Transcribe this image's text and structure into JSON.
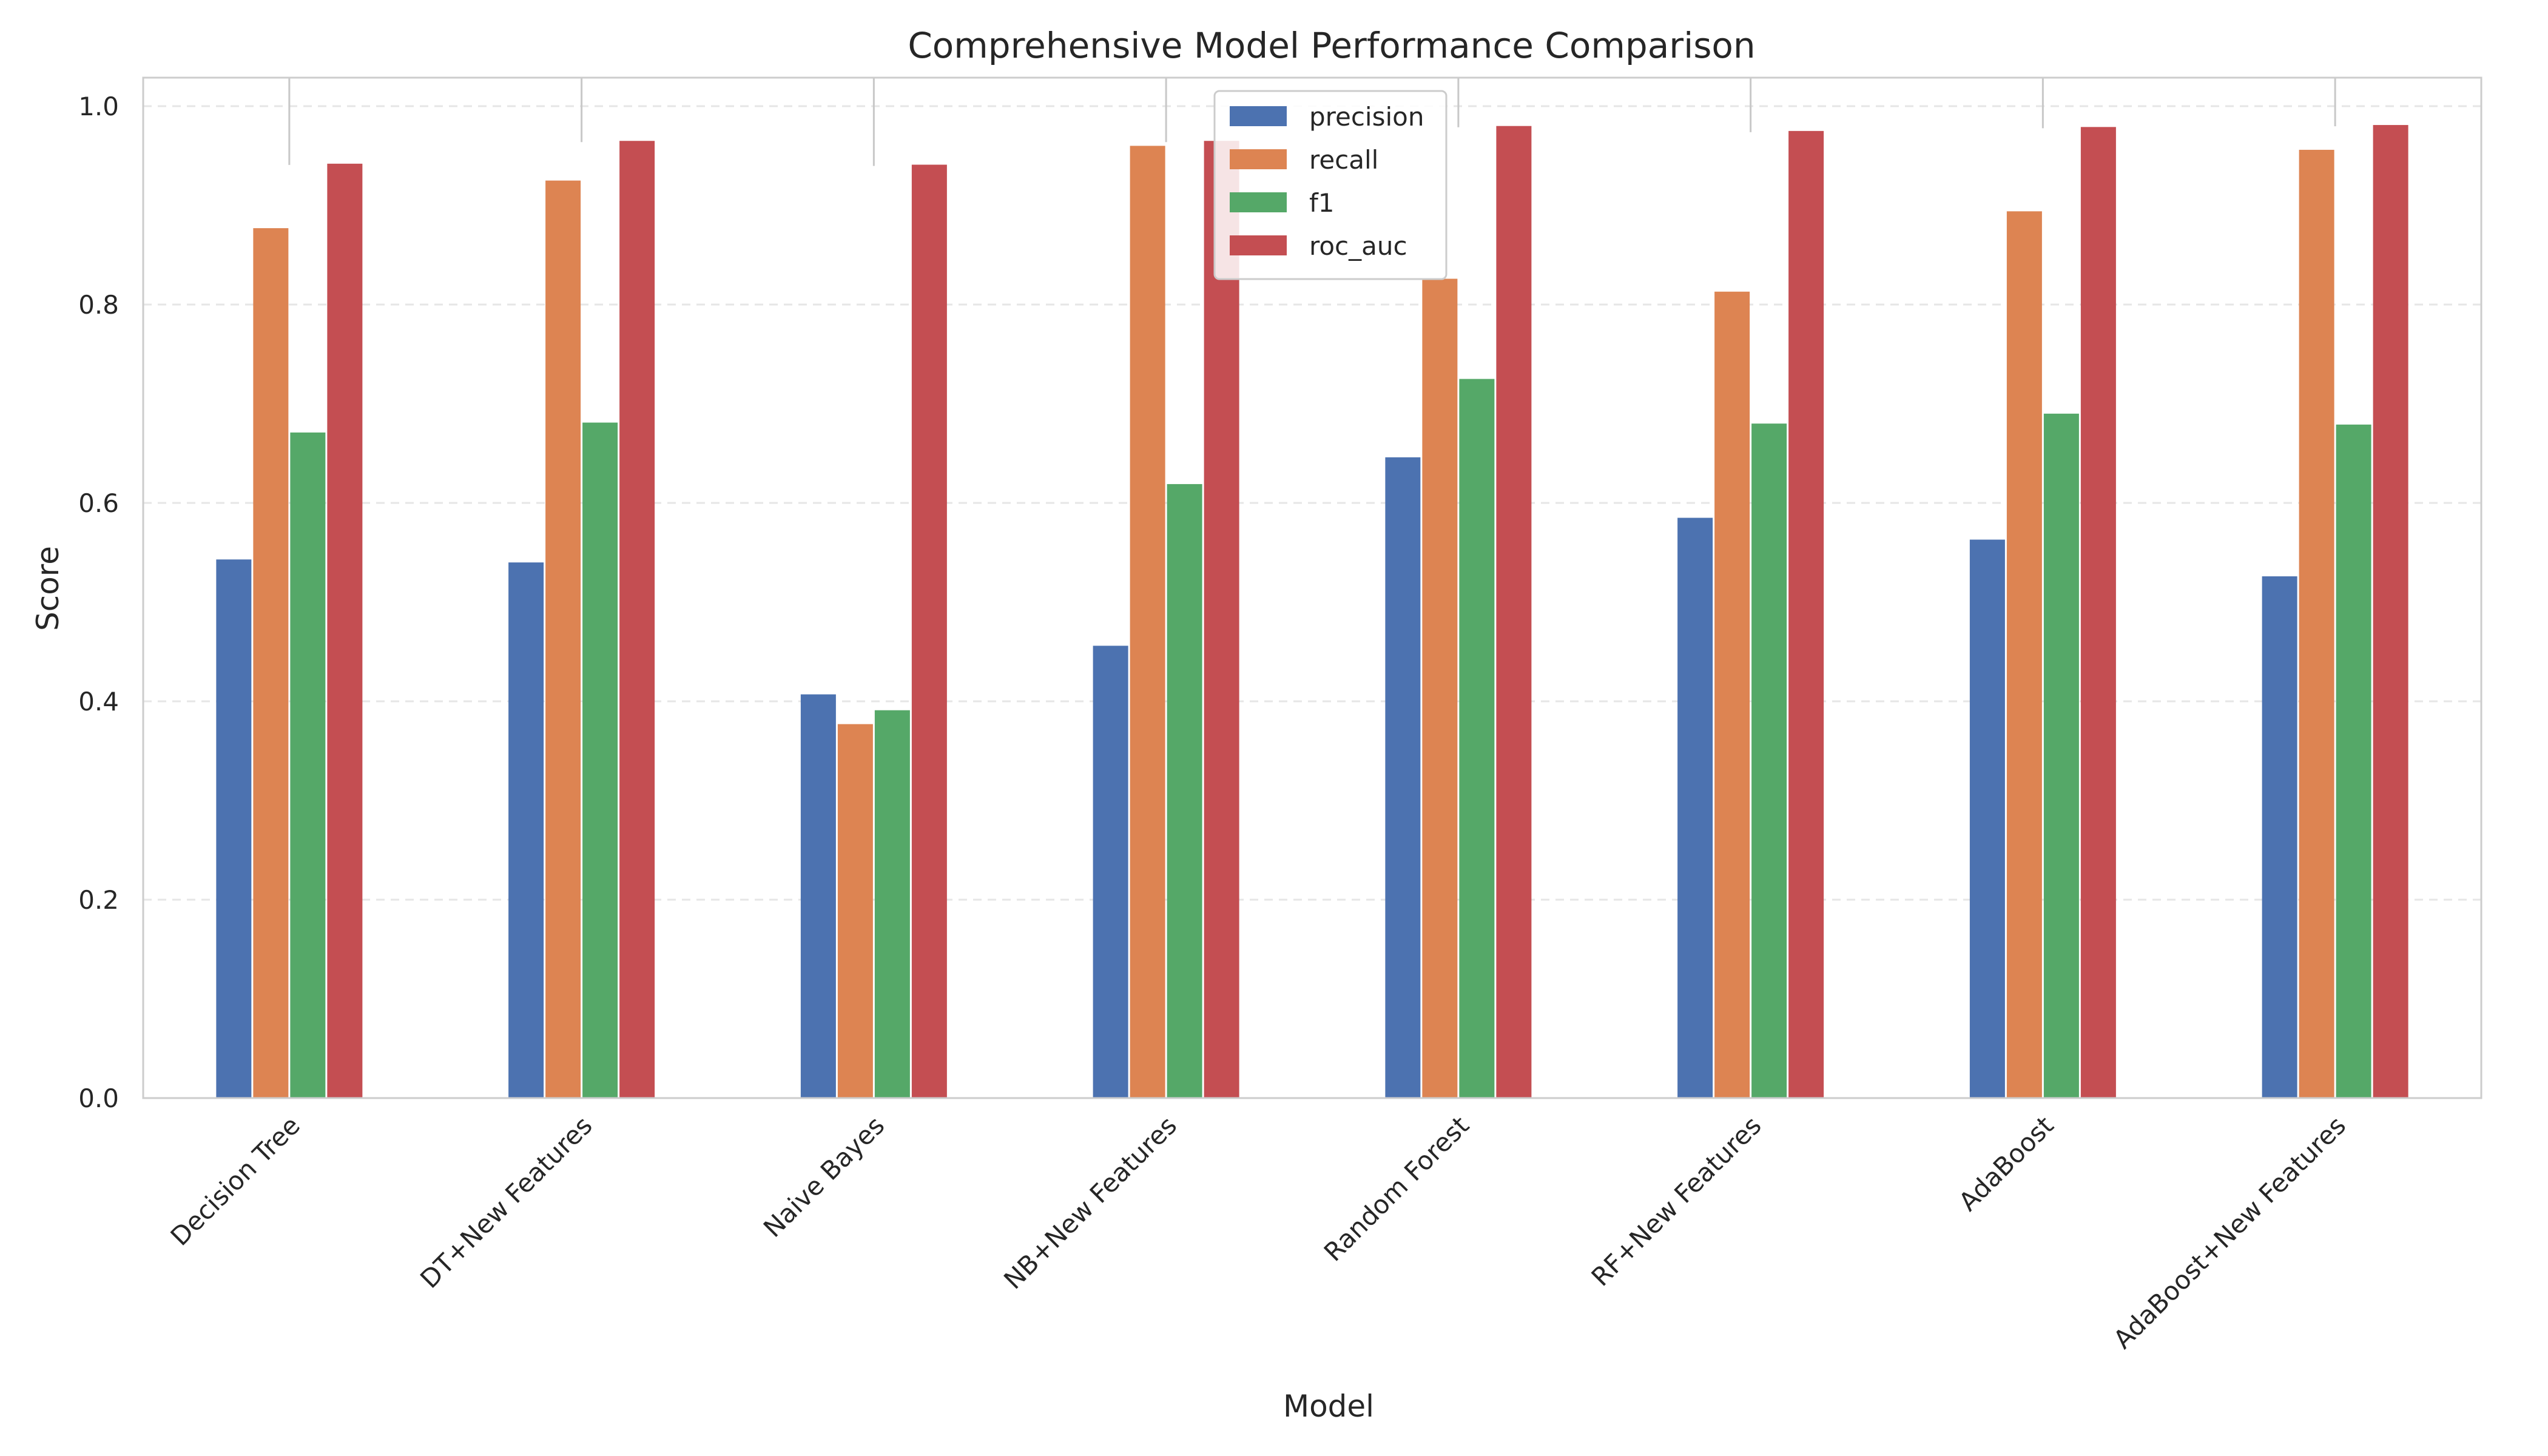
{
  "chart_data": {
    "type": "bar",
    "title": "Comprehensive Model Performance Comparison",
    "xlabel": "Model",
    "ylabel": "Score",
    "ylim": [
      0,
      1.03
    ],
    "yticks": [
      "0.0",
      "0.2",
      "0.4",
      "0.6",
      "0.8",
      "1.0"
    ],
    "grid": "y-dashed",
    "legend_position": "top-center",
    "categories": [
      "Decision Tree",
      "DT+New Features",
      "Naive Bayes",
      "NB+New Features",
      "Random Forest",
      "RF+New Features",
      "AdaBoost",
      "AdaBoost+New Features"
    ],
    "series": [
      {
        "name": "precision",
        "color": "#4c72b0",
        "values": [
          0.543,
          0.54,
          0.407,
          0.456,
          0.646,
          0.585,
          0.563,
          0.526
        ]
      },
      {
        "name": "recall",
        "color": "#dd8452",
        "values": [
          0.877,
          0.925,
          0.377,
          0.96,
          0.826,
          0.813,
          0.894,
          0.956
        ]
      },
      {
        "name": "f1",
        "color": "#55a868",
        "values": [
          0.671,
          0.681,
          0.391,
          0.619,
          0.725,
          0.68,
          0.69,
          0.679
        ]
      },
      {
        "name": "roc_auc",
        "color": "#c44e52",
        "values": [
          0.942,
          0.965,
          0.941,
          0.965,
          0.98,
          0.975,
          0.979,
          0.981
        ]
      }
    ]
  }
}
